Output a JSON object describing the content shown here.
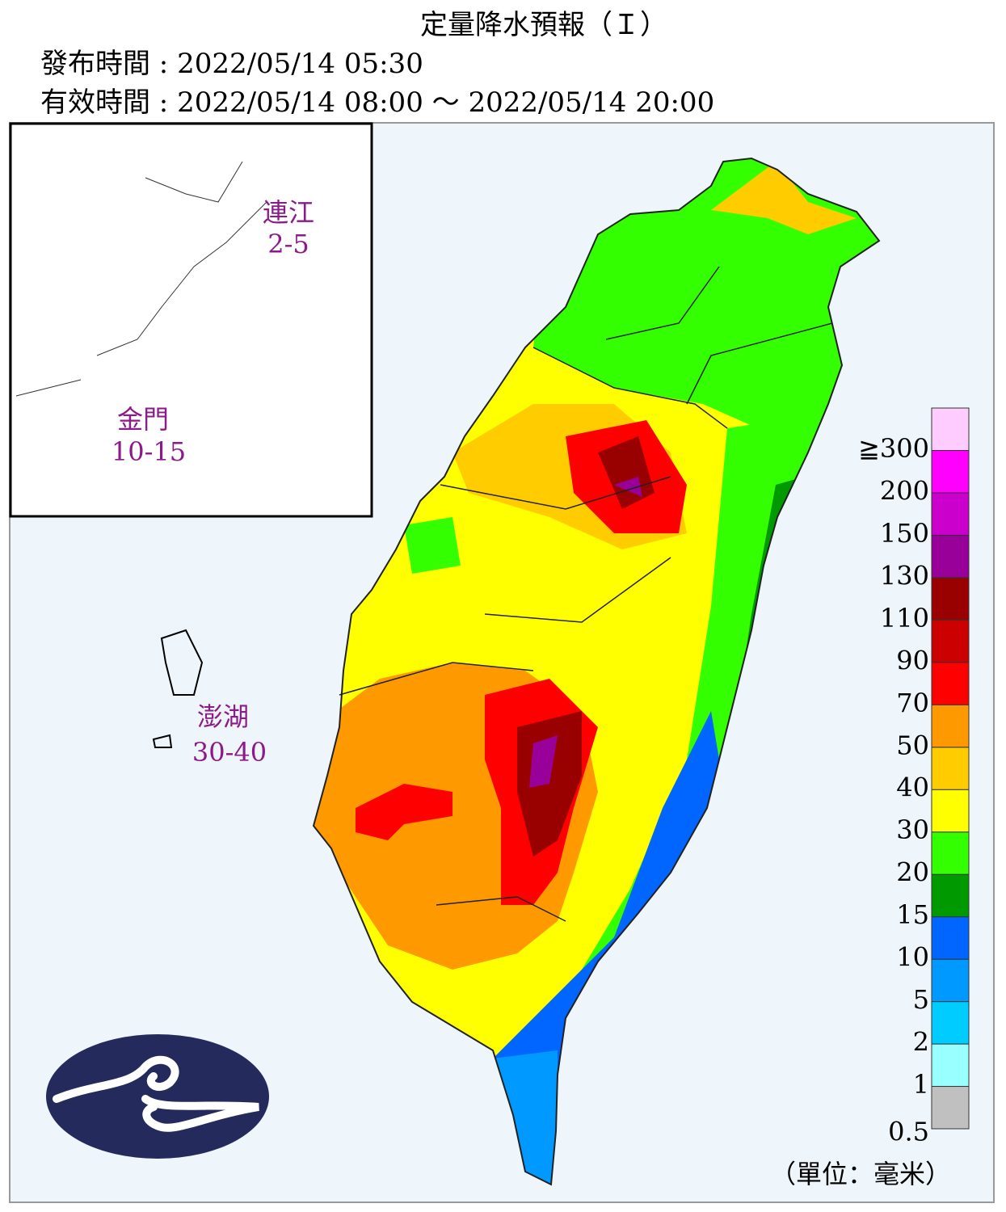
{
  "header": {
    "title": "定量降水預報（Ｉ）",
    "issued": "發布時間 : 2022/05/14 05:30",
    "valid": "有效時間 : 2022/05/14 08:00 ～ 2022/05/14 20:00"
  },
  "regions": [
    {
      "name": "連江",
      "value": "2-5"
    },
    {
      "name": "金門",
      "value": "10-15"
    },
    {
      "name": "澎湖",
      "value": "30-40"
    }
  ],
  "legend": {
    "labels": [
      "0.5",
      "1",
      "2",
      "5",
      "10",
      "15",
      "20",
      "30",
      "40",
      "50",
      "70",
      "90",
      "110",
      "130",
      "150",
      "200",
      "≧300"
    ],
    "colors": [
      "#c0c0c0",
      "#99ffff",
      "#00ccff",
      "#0099ff",
      "#0066ff",
      "#009900",
      "#33ff00",
      "#ffff00",
      "#ffcc00",
      "#ff9900",
      "#ff0000",
      "#cc0000",
      "#990000",
      "#990099",
      "#cc00cc",
      "#ff00ff",
      "#ffccff"
    ]
  },
  "unit": "（單位：毫米）"
}
